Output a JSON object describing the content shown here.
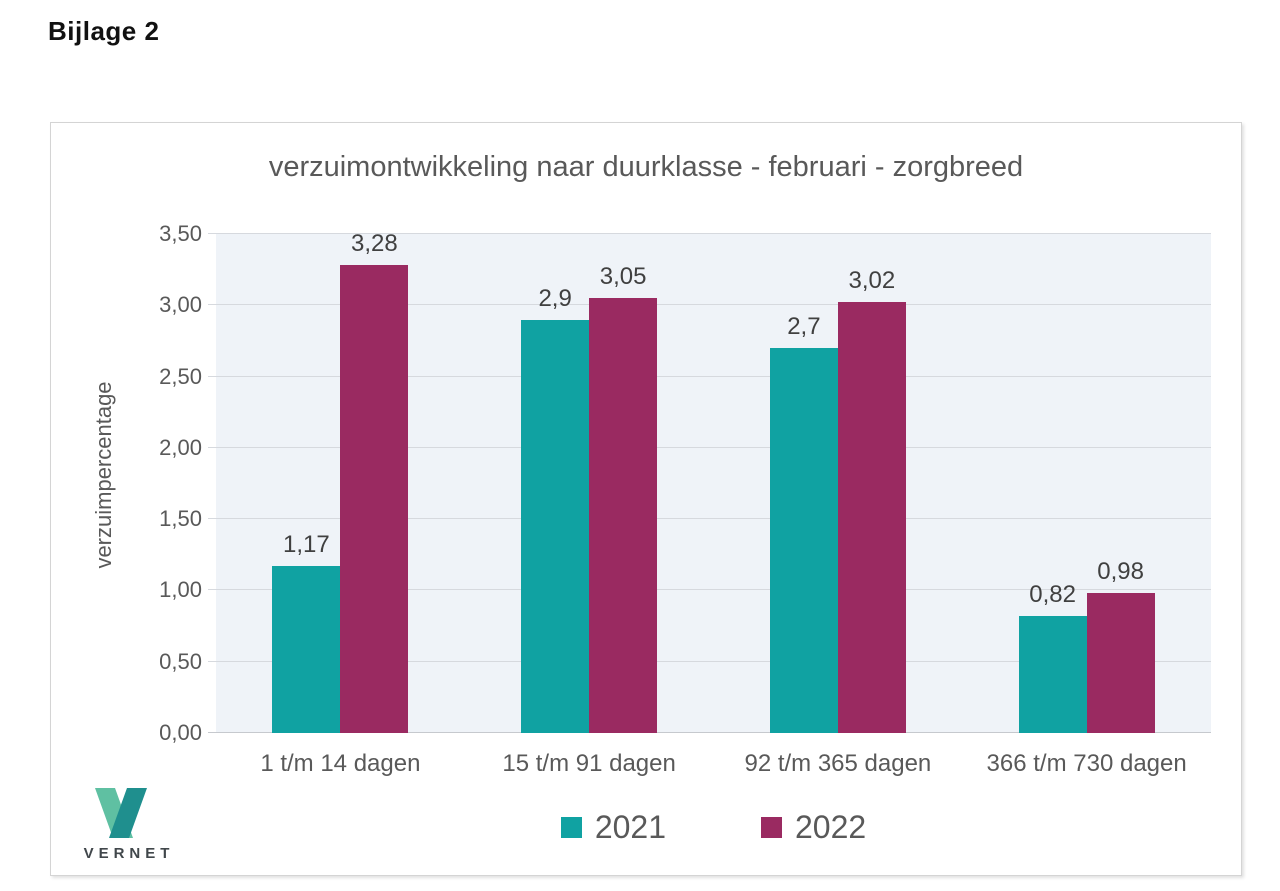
{
  "page": {
    "heading": "Bijlage 2"
  },
  "chart_data": {
    "type": "bar",
    "title": "verzuimontwikkeling naar duurklasse - februari - zorgbreed",
    "xlabel": "",
    "ylabel": "verzuimpercentage",
    "categories": [
      "1 t/m 14 dagen",
      "15 t/m 91 dagen",
      "92 t/m 365 dagen",
      "366 t/m 730 dagen"
    ],
    "series": [
      {
        "name": "2021",
        "color": "#10a2a2",
        "values": [
          1.17,
          2.9,
          2.7,
          0.82
        ],
        "labels": [
          "1,17",
          "2,9",
          "2,7",
          "0,82"
        ]
      },
      {
        "name": "2022",
        "color": "#9a2a61",
        "values": [
          3.28,
          3.05,
          3.02,
          0.98
        ],
        "labels": [
          "3,28",
          "3,05",
          "3,02",
          "0,98"
        ]
      }
    ],
    "ylim": [
      0,
      3.5
    ],
    "ytick_step": 0.5,
    "ytick_labels": [
      "0,00",
      "0,50",
      "1,00",
      "1,50",
      "2,00",
      "2,50",
      "3,00",
      "3,50"
    ],
    "grid": true,
    "legend_position": "bottom-center"
  },
  "logo": {
    "text": "VERNET",
    "color_left": "#5fc0a2",
    "color_right": "#1f8f8e"
  },
  "colors": {
    "plot_bg": "#eff3f8",
    "gridline": "#d6d9de",
    "axis_text": "#595959",
    "data_label": "#404040",
    "title": "#595959",
    "card_border": "#d4d4d4"
  }
}
